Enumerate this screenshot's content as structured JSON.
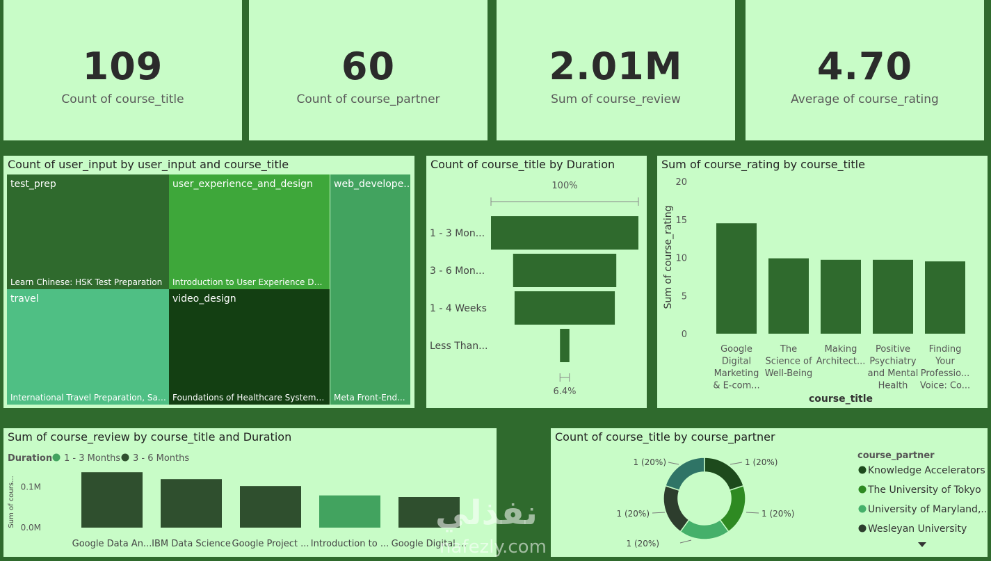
{
  "kpis": [
    {
      "value": "109",
      "label": "Count of course_title"
    },
    {
      "value": "60",
      "label": "Count of course_partner"
    },
    {
      "value": "2.01M",
      "label": "Sum of course_review"
    },
    {
      "value": "4.70",
      "label": "Average of course_rating"
    }
  ],
  "treemap": {
    "title": "Count of user_input by user_input and course_title",
    "tiles": [
      {
        "category": "test_prep",
        "item": "Learn Chinese: HSK Test Preparation",
        "color": "#2f6a2d"
      },
      {
        "category": "user_experience_and_design",
        "item": "Introduction to User Experience Des...",
        "color": "#3ea73a"
      },
      {
        "category": "web_develope...",
        "item": "Meta Front-End...",
        "color": "#42a35f"
      },
      {
        "category": "travel",
        "item": "International Travel Preparation, Saf...",
        "color": "#4fbf84"
      },
      {
        "category": "video_design",
        "item": "Foundations of Healthcare Systems ...",
        "color": "#133f12"
      }
    ]
  },
  "chart_data": [
    {
      "type": "bar",
      "subtype": "funnel",
      "title": "Count of course_title by Duration",
      "categories": [
        "1 - 3 Mon...",
        "3 - 6 Mon...",
        "1 - 4 Weeks",
        "Less Than..."
      ],
      "values": [
        100,
        70,
        68,
        6.4
      ],
      "top_label": "100%",
      "bottom_label": "6.4%",
      "color": "#2f6a2d"
    },
    {
      "type": "bar",
      "title": "Sum of course_rating by course_title",
      "categories": [
        "Google Digital Marketing & E-com...",
        "The Science of Well-Being",
        "Making Architect...",
        "Positive Psychiatry and Mental Health",
        "Finding Your Professio... Voice: Co..."
      ],
      "category_lines": [
        [
          "Google",
          "Digital",
          "Marketing",
          "& E-com..."
        ],
        [
          "The",
          "Science of",
          "Well-Being"
        ],
        [
          "Making",
          "Architect..."
        ],
        [
          "Positive",
          "Psychiatry",
          "and Mental",
          "Health"
        ],
        [
          "Finding",
          "Your",
          "Professio...",
          "Voice: Co..."
        ]
      ],
      "values": [
        14.5,
        9.9,
        9.7,
        9.7,
        9.5
      ],
      "xlabel": "course_title",
      "ylabel": "Sum of course_rating",
      "ylim": [
        0,
        20
      ],
      "yticks": [
        0,
        5,
        10,
        15,
        20
      ],
      "color": "#2f6a2d"
    },
    {
      "type": "bar",
      "title": "Sum of course_review by course_title and Duration",
      "legend_title": "Duration",
      "series": [
        {
          "name": "1 - 3 Months",
          "color": "#42a35f"
        },
        {
          "name": "3 - 6 Months",
          "color": "#2f4f2e"
        }
      ],
      "categories": [
        "Google Data An...",
        "IBM Data Science",
        "Google Project ...",
        "Introduction to ...",
        "Google Digital ..."
      ],
      "values": [
        0.136,
        0.119,
        0.102,
        0.079,
        0.075
      ],
      "bar_series": [
        "3 - 6 Months",
        "3 - 6 Months",
        "3 - 6 Months",
        "1 - 3 Months",
        "3 - 6 Months"
      ],
      "ylabel": "Sum of cours...",
      "ytick_labels": [
        "0.0M",
        "0.1M"
      ],
      "ytick_values": [
        0,
        0.1
      ],
      "ymax": 0.15
    },
    {
      "type": "pie",
      "subtype": "donut",
      "title": "Count of course_title by course_partner",
      "legend_title": "course_partner",
      "labels": [
        "Knowledge Accelerators",
        "The University of Tokyo",
        "University of Maryland,...",
        "Wesleyan University",
        ""
      ],
      "values": [
        1,
        1,
        1,
        1,
        1
      ],
      "slice_labels": [
        "1 (20%)",
        "1 (20%)",
        "1 (20%)",
        "1 (20%)",
        "1 (20%)"
      ],
      "colors": [
        "#1d4a1c",
        "#2e8a22",
        "#45b06a",
        "#2d3d2d",
        "#2f7466"
      ]
    }
  ],
  "watermark": {
    "arabic": "نفذلي",
    "latin": "nafezly.com"
  }
}
